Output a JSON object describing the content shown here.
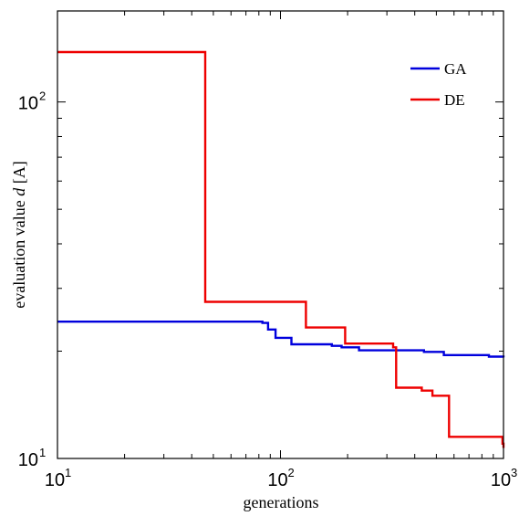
{
  "chart_data": {
    "type": "line",
    "xscale": "log",
    "yscale": "log",
    "xlim": [
      10,
      1000
    ],
    "ylim": [
      10,
      180
    ],
    "xlabel": "generations",
    "ylabel_prefix": "evaluation value ",
    "ylabel_var": "d",
    "ylabel_unit": " [A]",
    "xticks": [
      {
        "value": 10,
        "base": "10",
        "exp": "1"
      },
      {
        "value": 100,
        "base": "10",
        "exp": "2"
      },
      {
        "value": 1000,
        "base": "10",
        "exp": "3"
      }
    ],
    "yticks": [
      {
        "value": 10,
        "base": "10",
        "exp": "1"
      },
      {
        "value": 100,
        "base": "10",
        "exp": "2"
      }
    ],
    "legend_position": "top-right",
    "grid": false,
    "series": [
      {
        "name": "GA",
        "color": "#0000dd",
        "points": [
          [
            10,
            24.2
          ],
          [
            83,
            24.0
          ],
          [
            88,
            23.0
          ],
          [
            95,
            21.8
          ],
          [
            112,
            20.9
          ],
          [
            170,
            20.7
          ],
          [
            188,
            20.5
          ],
          [
            225,
            20.1
          ],
          [
            440,
            19.9
          ],
          [
            540,
            19.5
          ],
          [
            860,
            19.3
          ],
          [
            1000,
            19.2
          ]
        ]
      },
      {
        "name": "DE",
        "color": "#ee0000",
        "points": [
          [
            10,
            138
          ],
          [
            46,
            27.5
          ],
          [
            130,
            23.3
          ],
          [
            195,
            21.0
          ],
          [
            320,
            20.5
          ],
          [
            330,
            15.8
          ],
          [
            430,
            15.5
          ],
          [
            480,
            15.0
          ],
          [
            570,
            11.5
          ],
          [
            990,
            11.0
          ],
          [
            1000,
            10.7
          ]
        ]
      }
    ]
  }
}
